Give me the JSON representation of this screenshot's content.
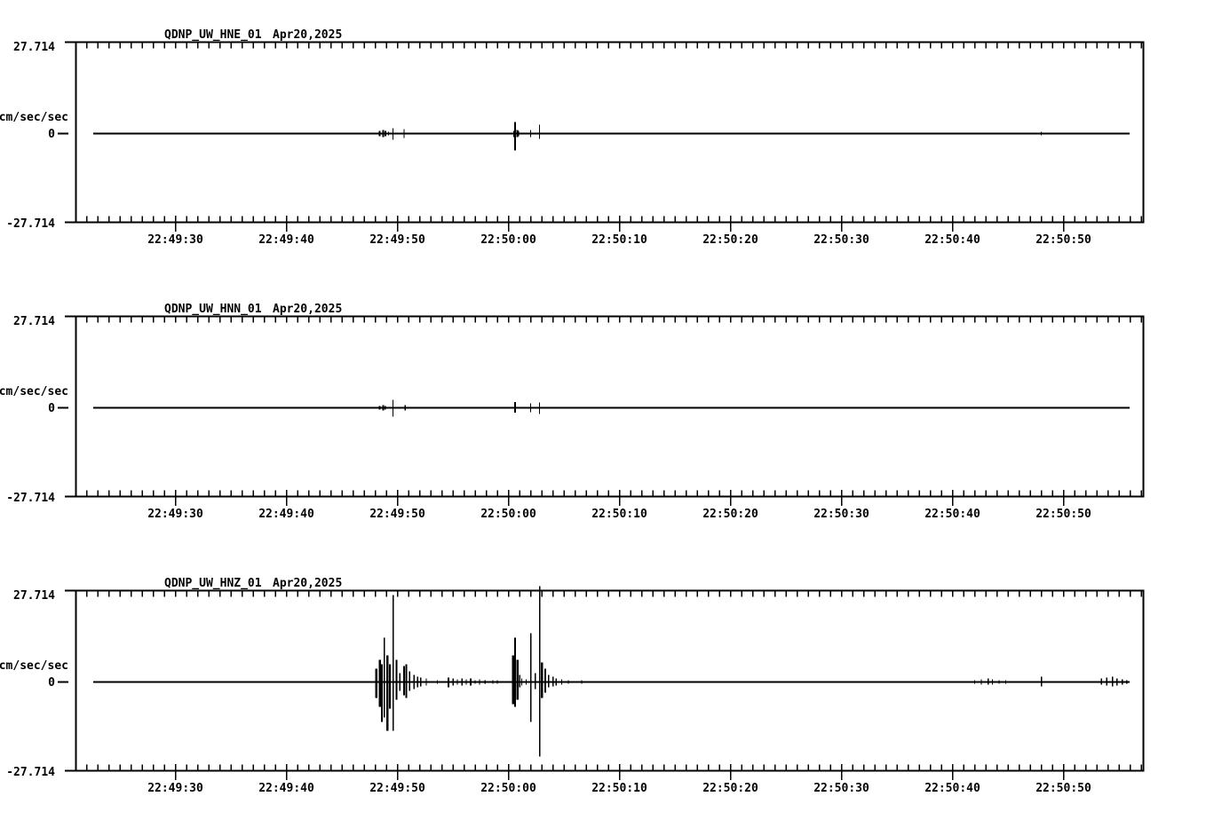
{
  "app": {
    "description": "Three-channel seismogram strip chart (acceleration traces)",
    "background_color": "#ffffff",
    "ink_color": "#000000"
  },
  "y_axis": {
    "max_label": "27.714",
    "zero_label": "0",
    "min_label": "-27.714",
    "unit": "cm/sec/sec"
  },
  "time_axis": {
    "labels": [
      "22:49:30",
      "22:49:40",
      "22:49:50",
      "22:50:00",
      "22:50:10",
      "22:50:20",
      "22:50:30",
      "22:50:40",
      "22:50:50"
    ],
    "start_time": "22:49:21",
    "end_time": "22:50:57",
    "major_tick_interval_s": 10,
    "minor_tick_interval_s": 1,
    "major_tick_offsets_s": [
      9,
      19,
      29,
      39,
      49,
      59,
      69,
      79,
      89
    ]
  },
  "chart_data": [
    {
      "type": "line",
      "station": "QDNP_UW_HNE_01",
      "date": "Apr20,2025",
      "ylabel": "cm/sec/sec",
      "ylim": [
        -27.714,
        27.714
      ],
      "baseline_value": 0,
      "x_window_s": 96.2,
      "x_tick_labels": [
        "22:49:30",
        "22:49:40",
        "22:49:50",
        "22:50:00",
        "22:50:10",
        "22:50:20",
        "22:50:30",
        "22:50:40",
        "22:50:50"
      ],
      "spikes_t_up_down_w": [
        [
          27.4,
          0.8,
          0.8,
          2
        ],
        [
          27.7,
          1.1,
          1.1,
          2
        ],
        [
          27.9,
          0.8,
          0.8,
          2
        ],
        [
          28.2,
          0.5,
          0.5,
          1.4
        ],
        [
          28.6,
          1.6,
          1.9,
          1.4
        ],
        [
          29.2,
          0.3,
          0.3,
          1.4
        ],
        [
          29.6,
          1.3,
          1.3,
          1.4
        ],
        [
          31.3,
          0.3,
          0.3,
          1.4
        ],
        [
          39.5,
          0.8,
          1.1,
          2
        ],
        [
          39.6,
          3.5,
          5.1,
          2.4
        ],
        [
          39.8,
          1.1,
          1.1,
          2
        ],
        [
          39.9,
          0.8,
          0.8,
          1.4
        ],
        [
          41.0,
          1.1,
          1.1,
          1.4
        ],
        [
          41.8,
          2.7,
          1.6,
          1.4
        ],
        [
          87.0,
          0.5,
          0.5,
          1.4
        ]
      ]
    },
    {
      "type": "line",
      "station": "QDNP_UW_HNN_01",
      "date": "Apr20,2025",
      "ylabel": "cm/sec/sec",
      "ylim": [
        -27.714,
        27.714
      ],
      "baseline_value": 0,
      "x_window_s": 96.2,
      "x_tick_labels": [
        "22:49:30",
        "22:49:40",
        "22:49:50",
        "22:50:00",
        "22:50:10",
        "22:50:20",
        "22:50:30",
        "22:50:40",
        "22:50:50"
      ],
      "spikes_t_up_down_w": [
        [
          27.4,
          0.5,
          0.5,
          2
        ],
        [
          27.7,
          0.8,
          0.8,
          2
        ],
        [
          27.9,
          0.5,
          0.5,
          1.4
        ],
        [
          28.6,
          2.4,
          2.7,
          1.4
        ],
        [
          29.2,
          0.3,
          0.3,
          1.4
        ],
        [
          29.7,
          0.8,
          0.8,
          1.4
        ],
        [
          39.6,
          1.8,
          1.5,
          2.4
        ],
        [
          40.4,
          0.3,
          0.3,
          1.4
        ],
        [
          41.0,
          1.3,
          1.3,
          1.4
        ],
        [
          41.8,
          1.6,
          1.9,
          1.4
        ],
        [
          79.8,
          0.3,
          0.3,
          1.4
        ]
      ]
    },
    {
      "type": "line",
      "station": "QDNP_UW_HNZ_01",
      "date": "Apr20,2025",
      "ylabel": "cm/sec/sec",
      "ylim": [
        -27.714,
        27.714
      ],
      "baseline_value": 0,
      "x_window_s": 96.2,
      "x_tick_labels": [
        "22:49:30",
        "22:49:40",
        "22:49:50",
        "22:50:00",
        "22:50:10",
        "22:50:20",
        "22:50:30",
        "22:50:40",
        "22:50:50"
      ],
      "spikes_t_up_down_w": [
        [
          27.1,
          4.0,
          4.8,
          2.5
        ],
        [
          27.4,
          6.7,
          7.5,
          2.5
        ],
        [
          27.6,
          5.4,
          12.1,
          2
        ],
        [
          27.8,
          13.5,
          10.8,
          1.5
        ],
        [
          28.1,
          8.1,
          14.8,
          2.5
        ],
        [
          28.3,
          5.4,
          8.1,
          2
        ],
        [
          28.6,
          26.4,
          14.8,
          1.5
        ],
        [
          28.9,
          6.7,
          5.4,
          2
        ],
        [
          29.2,
          2.7,
          2.7,
          1.5
        ],
        [
          29.6,
          4.8,
          4.0,
          2
        ],
        [
          29.8,
          5.4,
          4.8,
          2
        ],
        [
          30.1,
          3.2,
          2.7,
          1.5
        ],
        [
          30.5,
          2.2,
          2.2,
          1.5
        ],
        [
          30.8,
          1.6,
          1.6,
          1.5
        ],
        [
          31.1,
          1.3,
          1.3,
          1.5
        ],
        [
          31.6,
          1.1,
          1.1,
          1.4
        ],
        [
          32.6,
          0.5,
          0.5,
          1.4
        ],
        [
          33.6,
          1.3,
          1.6,
          2
        ],
        [
          34.0,
          1.1,
          1.1,
          1.5
        ],
        [
          34.4,
          0.8,
          0.8,
          1.4
        ],
        [
          34.8,
          1.1,
          1.1,
          1.5
        ],
        [
          35.2,
          0.8,
          0.8,
          1.4
        ],
        [
          35.6,
          1.1,
          1.1,
          2
        ],
        [
          36.0,
          0.5,
          0.5,
          1.4
        ],
        [
          36.4,
          0.8,
          0.8,
          1.4
        ],
        [
          36.9,
          0.5,
          0.5,
          1.4
        ],
        [
          37.6,
          0.5,
          0.5,
          1.4
        ],
        [
          38.0,
          0.5,
          0.5,
          1.4
        ],
        [
          39.4,
          8.1,
          6.7,
          2.5
        ],
        [
          39.6,
          13.5,
          7.5,
          2
        ],
        [
          39.8,
          6.7,
          5.4,
          2.5
        ],
        [
          40.0,
          2.2,
          1.6,
          1.5
        ],
        [
          40.2,
          1.1,
          1.1,
          1.4
        ],
        [
          40.6,
          0.8,
          0.8,
          1.4
        ],
        [
          41.0,
          14.8,
          12.1,
          1.5
        ],
        [
          41.4,
          2.7,
          2.2,
          1.5
        ],
        [
          41.8,
          29.1,
          22.6,
          1.5
        ],
        [
          42.0,
          5.9,
          4.8,
          2.5
        ],
        [
          42.3,
          4.0,
          3.2,
          2
        ],
        [
          42.6,
          2.2,
          1.6,
          1.5
        ],
        [
          43.0,
          1.6,
          1.3,
          1.5
        ],
        [
          43.3,
          1.1,
          1.1,
          1.4
        ],
        [
          43.8,
          0.8,
          0.8,
          1.4
        ],
        [
          44.4,
          0.5,
          0.5,
          1.4
        ],
        [
          45.6,
          0.5,
          0.5,
          1.4
        ],
        [
          81.0,
          0.5,
          0.5,
          1.4
        ],
        [
          81.6,
          0.8,
          0.8,
          1.4
        ],
        [
          82.2,
          1.1,
          0.8,
          1.5
        ],
        [
          82.6,
          0.8,
          0.8,
          1.4
        ],
        [
          83.2,
          0.5,
          0.5,
          1.4
        ],
        [
          83.8,
          0.5,
          0.5,
          1.4
        ],
        [
          87.0,
          1.6,
          1.3,
          1.5
        ],
        [
          92.4,
          1.1,
          0.8,
          1.5
        ],
        [
          92.9,
          1.3,
          1.1,
          1.5
        ],
        [
          93.4,
          1.6,
          1.3,
          1.5
        ],
        [
          93.8,
          1.1,
          1.1,
          1.5
        ],
        [
          94.3,
          0.8,
          0.8,
          1.4
        ],
        [
          94.7,
          0.5,
          0.5,
          1.4
        ]
      ]
    }
  ]
}
